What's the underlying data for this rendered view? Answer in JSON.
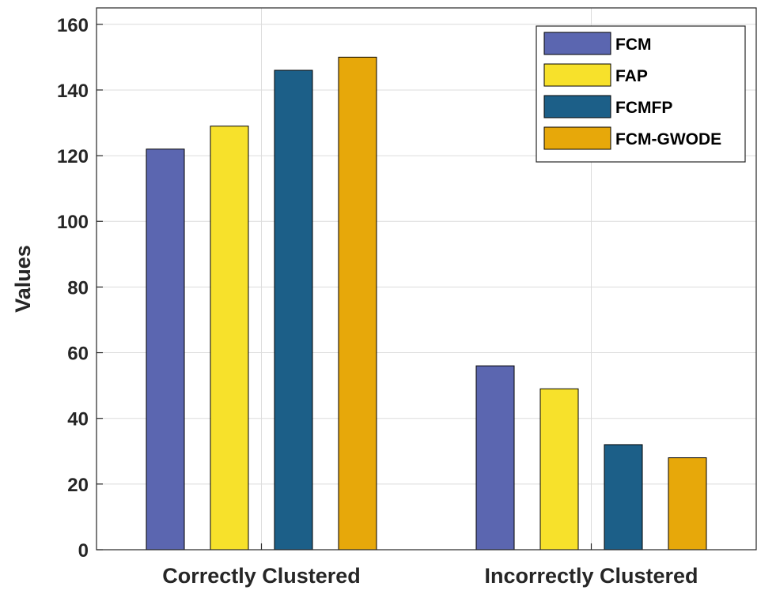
{
  "chart_data": {
    "type": "bar",
    "title": "",
    "xlabel": "",
    "ylabel": "Values",
    "categories": [
      "Correctly Clustered",
      "Incorrectly Clustered"
    ],
    "series": [
      {
        "name": "FCM",
        "color": "#5b66b0",
        "values": [
          122,
          56
        ]
      },
      {
        "name": "FAP",
        "color": "#f7e12b",
        "values": [
          129,
          49
        ]
      },
      {
        "name": "FCMFP",
        "color": "#1c5f88",
        "values": [
          146,
          32
        ]
      },
      {
        "name": "FCM-GWODE",
        "color": "#e7a80a",
        "values": [
          150,
          28
        ]
      }
    ],
    "ylim": [
      0,
      165
    ],
    "yticks": [
      "0",
      "20",
      "40",
      "60",
      "80",
      "100",
      "120",
      "140",
      "160"
    ],
    "grid": true,
    "legend_position": "top-right"
  }
}
